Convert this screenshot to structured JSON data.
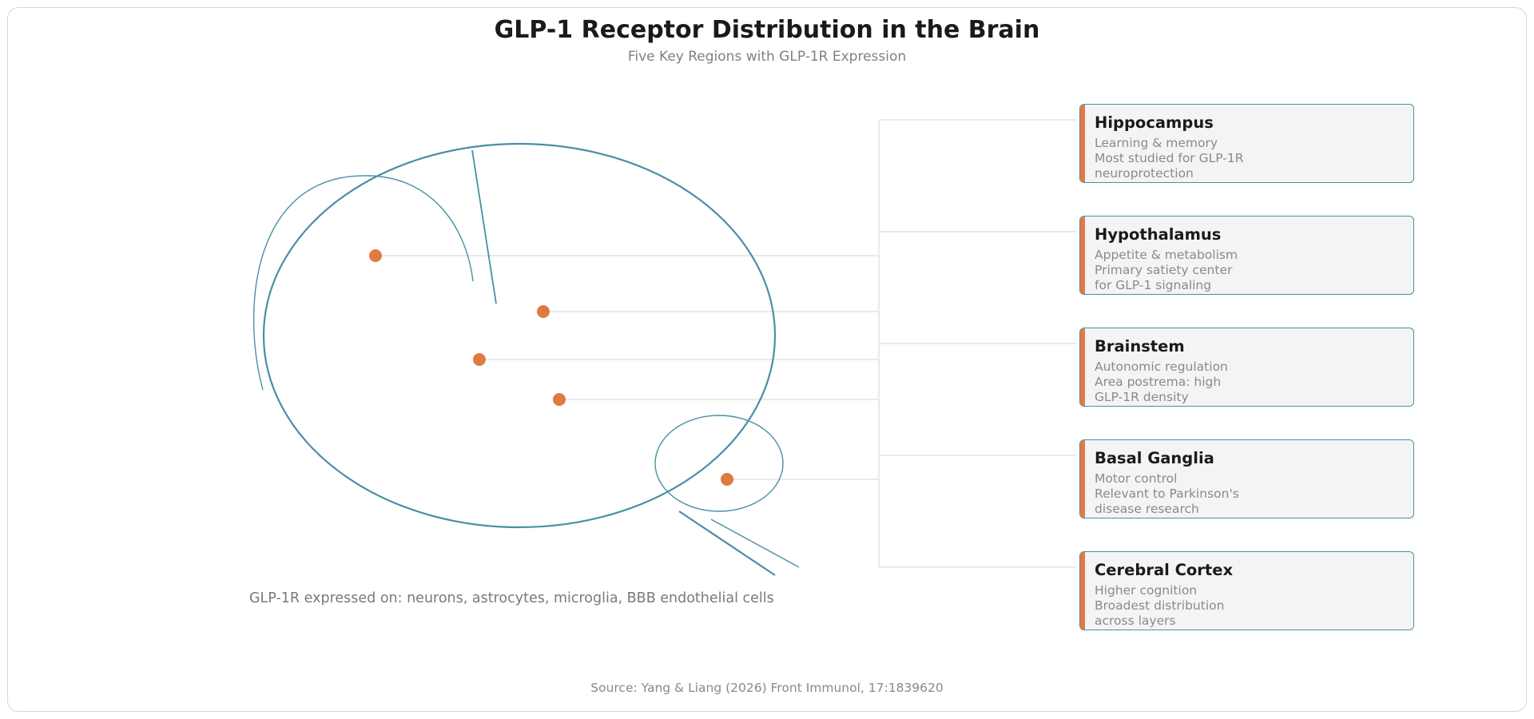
{
  "header": {
    "title": "GLP-1 Receptor Distribution in the Brain",
    "subtitle": "Five Key Regions with GLP-1R Expression"
  },
  "regions": [
    {
      "name": "Hippocampus",
      "lines": [
        "Learning & memory",
        "Most studied for GLP-1R",
        "neuroprotection"
      ]
    },
    {
      "name": "Hypothalamus",
      "lines": [
        "Appetite & metabolism",
        "Primary satiety center",
        "for GLP-1 signaling"
      ]
    },
    {
      "name": "Brainstem",
      "lines": [
        "Autonomic regulation",
        "Area postrema: high",
        "GLP-1R density"
      ]
    },
    {
      "name": "Basal Ganglia",
      "lines": [
        "Motor control",
        "Relevant to Parkinson's",
        "disease research"
      ]
    },
    {
      "name": "Cerebral Cortex",
      "lines": [
        "Higher cognition",
        "Broadest distribution",
        "across layers"
      ]
    }
  ],
  "expression_note": "GLP-1R expressed on: neurons, astrocytes, microglia, BBB endothelial cells",
  "source": "Source: Yang & Liang (2026) Front Immunol, 17:1839620",
  "colors": {
    "outline": "#4a8fa5",
    "marker": "#e07a44",
    "card_fill": "#f4f4f4",
    "connector": "#dddddd"
  }
}
